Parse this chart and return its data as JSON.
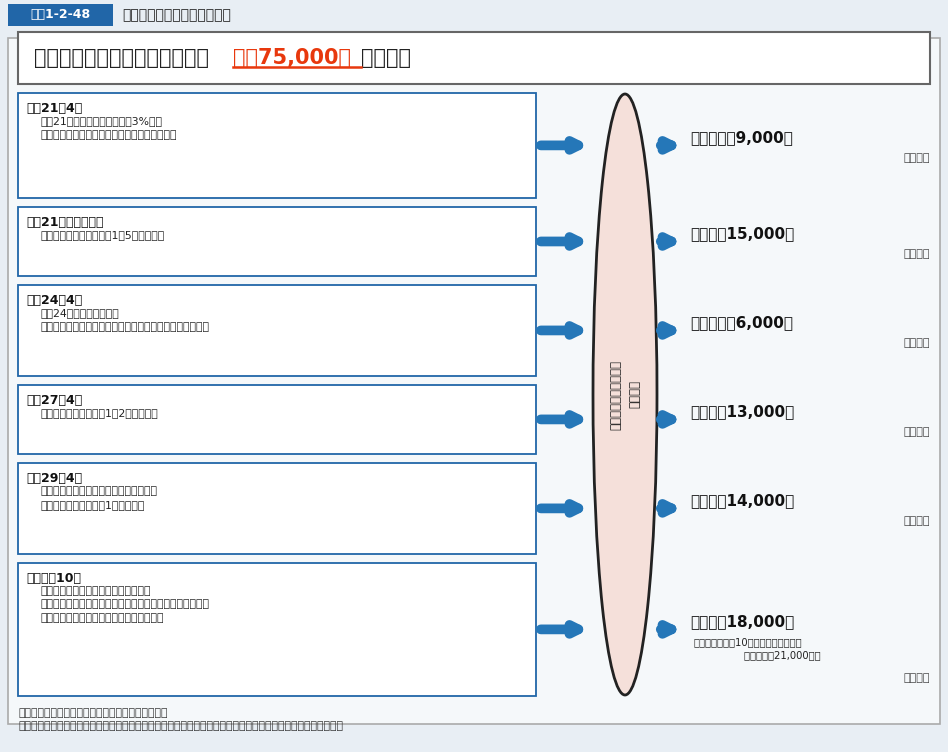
{
  "title_box": "図表1-2-48",
  "title_text": "介護職員の処遇改善の取組み",
  "header_text_plain": "これまでの実績を合計すると、",
  "header_text_colored": "月額75,000円",
  "header_text_end": "となる。",
  "bg_color": "#e8eef4",
  "main_bg": "#f5f8fa",
  "box_border_color": "#2166a8",
  "arrow_color": "#2577b8",
  "title_bg": "#2166a8",
  "ellipse_fill": "#f5e0da",
  "ellipse_stroke": "#222222",
  "highlight_color": "#e8380d",
  "rows": [
    {
      "title": "平成21年4月",
      "body": "平成21年度介護報酬改定　＋3%改定\n（介護従事者の処遇改善に重点をおいた改定）",
      "amount": "月額　＋　9,000円",
      "note": "（実績）",
      "note_special": null
    },
    {
      "title": "平成21年度補正予算",
      "body": "処遇改善交付金を措置（1．5万円相当）",
      "amount": "月額　＋15,000円",
      "note": "（実績）",
      "note_special": null
    },
    {
      "title": "平成24年4月",
      "body": "平成24年度介護報酬改定\n処遇改善交付金を処遇改善加算として介護報酬に組み込む",
      "amount": "月額　＋　6,000円",
      "note": "（実績）",
      "note_special": null
    },
    {
      "title": "平成27年4月",
      "body": "処遇改善加算の拡充（1．2万円相当）",
      "amount": "月額　＋13,000円",
      "note": "（実績）",
      "note_special": null
    },
    {
      "title": "平成29年4月",
      "body": "ニッポン一億総活躍プラン等に基づき、\n処遇改善加算を拡充（1万円相当）",
      "amount": "月額　＋14,000円",
      "note": "（実績）",
      "note_special": null
    },
    {
      "title": "令和元年10月",
      "body": "新しい経済政策パッケージに基づき、\n全産業平均の賃金と遜色ない水準を目指し、更なる処遇改\n善を進めるため、特定処遇改善加算を創設",
      "amount": "月額　＋18,000円",
      "note": "（実績）",
      "note_special": "〔うち勤続年数10年以上の介護福祉士\n                　　　　＋21,000円〕"
    }
  ],
  "ellipse_label": "施設・事業所における\n処遇改善",
  "footer1": "資料：厚生労働省老健局老人保健課において作成。",
  "footer2": "（注）　実績は全て厚生労働省老健局「介護従事者処遇状況等調査」によるが、それぞれ調査客体等は異なる。"
}
